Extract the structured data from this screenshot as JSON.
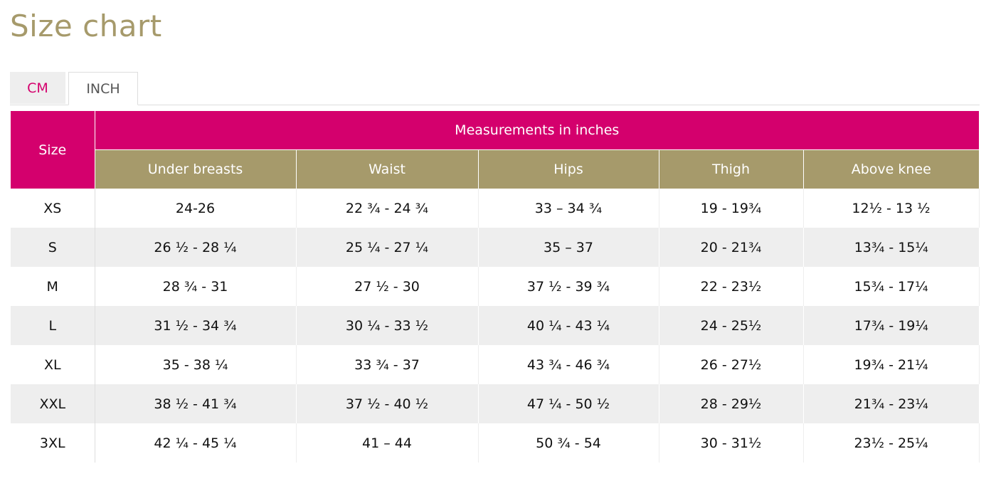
{
  "page": {
    "title": "Size chart"
  },
  "tabs": [
    {
      "label": "CM",
      "active": false
    },
    {
      "label": "INCH",
      "active": true
    }
  ],
  "table": {
    "size_header": "Size",
    "group_header": "Measurements in inches",
    "columns": [
      "Under breasts",
      "Waist",
      "Hips",
      "Thigh",
      "Above knee"
    ],
    "rows": [
      {
        "size": "XS",
        "values": [
          "24-26",
          "22 ¾ - 24 ¾",
          "33 – 34 ¾",
          "19 - 19¾",
          "12½ - 13 ½"
        ]
      },
      {
        "size": "S",
        "values": [
          "26 ½ - 28 ¼",
          "25 ¼ - 27 ¼",
          "35 – 37",
          "20 - 21¾",
          "13¾ - 15¼"
        ]
      },
      {
        "size": "M",
        "values": [
          "28 ¾ - 31",
          "27 ½ - 30",
          "37 ½ - 39 ¾",
          "22 - 23½",
          "15¾ - 17¼"
        ]
      },
      {
        "size": "L",
        "values": [
          "31 ½ - 34 ¾",
          "30 ¼ - 33 ½",
          "40 ¼ - 43 ¼",
          "24 - 25½",
          "17¾ - 19¼"
        ]
      },
      {
        "size": "XL",
        "values": [
          "35 - 38 ¼",
          "33 ¾ - 37",
          "43 ¾ - 46 ¾",
          "26 - 27½",
          "19¾ - 21¼"
        ]
      },
      {
        "size": "XXL",
        "values": [
          "38 ½ - 41 ¾",
          "37 ½ - 40 ½",
          "47 ¼ - 50 ½",
          "28 - 29½",
          "21¾ - 23¼"
        ]
      },
      {
        "size": "3XL",
        "values": [
          "42 ¼ - 45 ¼",
          "41 – 44",
          "50 ¾ - 54",
          "30 - 31½",
          "23½ - 25¼"
        ]
      }
    ]
  },
  "colors": {
    "accent_magenta": "#d4006d",
    "accent_gold": "#a69a6b",
    "row_stripe": "#eeeeee"
  }
}
